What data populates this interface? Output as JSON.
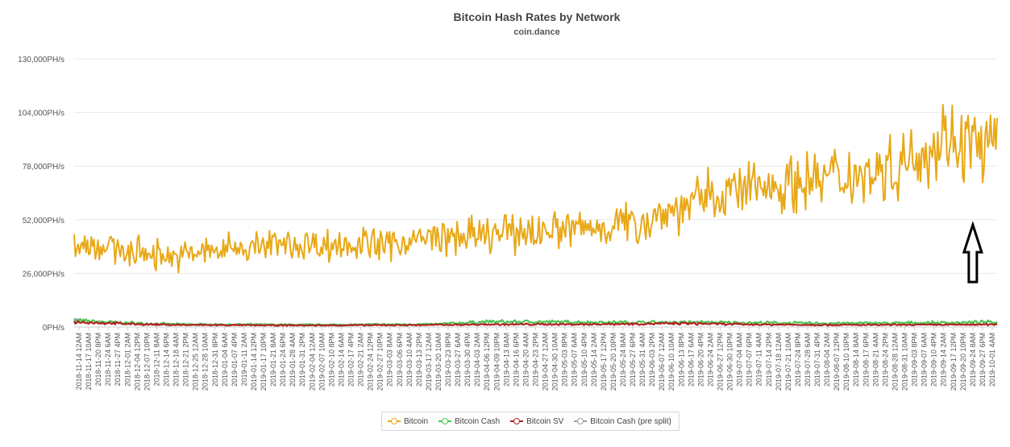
{
  "chart_data": {
    "type": "line",
    "title": "Bitcoin Hash Rates by Network",
    "subtitle": "coin.dance",
    "y_ticks": [
      "0PH/s",
      "26,000PH/s",
      "52,000PH/s",
      "78,000PH/s",
      "104,000PH/s",
      "130,000PH/s"
    ],
    "ylim": [
      0,
      130000
    ],
    "grid": true,
    "legend_position": "bottom-center",
    "x_labels": [
      "2018-11-14 12AM",
      "2018-11-17 10AM",
      "2018-11-20 8PM",
      "2018-11-24 6AM",
      "2018-11-27 4PM",
      "2018-12-01 2AM",
      "2018-12-04 12PM",
      "2018-12-07 10PM",
      "2018-12-11 8AM",
      "2018-12-14 6PM",
      "2018-12-18 4AM",
      "2018-12-21 2PM",
      "2018-12-25 12AM",
      "2018-12-28 10AM",
      "2018-12-31 8PM",
      "2019-01-04 6AM",
      "2019-01-07 4PM",
      "2019-01-11 2AM",
      "2019-01-14 12PM",
      "2019-01-17 10PM",
      "2019-01-21 8AM",
      "2019-01-24 6PM",
      "2019-01-28 4AM",
      "2019-01-31 2PM",
      "2019-02-04 12AM",
      "2019-02-07 10AM",
      "2019-02-10 8PM",
      "2019-02-14 6AM",
      "2019-02-17 4PM",
      "2019-02-21 2AM",
      "2019-02-24 12PM",
      "2019-02-27 10PM",
      "2019-03-03 8AM",
      "2019-03-06 6PM",
      "2019-03-10 4AM",
      "2019-03-13 2PM",
      "2019-03-17 12AM",
      "2019-03-20 10AM",
      "2019-03-23 8PM",
      "2019-03-27 6AM",
      "2019-03-30 4PM",
      "2019-04-03 2AM",
      "2019-04-06 12PM",
      "2019-04-09 10PM",
      "2019-04-13 8AM",
      "2019-04-16 6PM",
      "2019-04-20 4AM",
      "2019-04-23 2PM",
      "2019-04-27 12AM",
      "2019-04-30 10AM",
      "2019-05-03 8PM",
      "2019-05-07 6AM",
      "2019-05-10 4PM",
      "2019-05-14 2AM",
      "2019-05-17 12PM",
      "2019-05-20 10PM",
      "2019-05-24 8AM",
      "2019-05-27 6PM",
      "2019-05-31 4AM",
      "2019-06-03 2PM",
      "2019-06-07 12AM",
      "2019-06-10 10AM",
      "2019-06-13 8PM",
      "2019-06-17 6AM",
      "2019-06-20 4PM",
      "2019-06-24 2AM",
      "2019-06-27 12PM",
      "2019-06-30 10PM",
      "2019-07-04 8AM",
      "2019-07-07 6PM",
      "2019-07-11 4AM",
      "2019-07-14 2PM",
      "2019-07-18 12AM",
      "2019-07-21 10AM",
      "2019-07-24 8PM",
      "2019-07-28 6AM",
      "2019-07-31 4PM",
      "2019-08-04 2AM",
      "2019-08-07 12PM",
      "2019-08-10 10PM",
      "2019-08-14 8AM",
      "2019-08-17 6PM",
      "2019-08-21 4AM",
      "2019-08-24 2PM",
      "2019-08-28 12AM",
      "2019-08-31 10AM",
      "2019-09-03 8PM",
      "2019-09-07 6AM",
      "2019-09-10 4PM",
      "2019-09-14 2AM",
      "2019-09-17 12PM",
      "2019-09-20 10PM",
      "2019-09-24 8AM",
      "2019-09-27 6PM",
      "2019-10-01 4AM"
    ],
    "series": [
      {
        "name": "Bitcoin",
        "color": "#e8a817",
        "level_anchors": [
          42000,
          37000,
          34000,
          38000,
          40000,
          40000,
          40000,
          43000,
          44000,
          47000,
          48000,
          51000,
          60000,
          67000,
          70000,
          74000,
          78000,
          92000,
          86000
        ]
      },
      {
        "name": "Bitcoin Cash",
        "color": "#4cc552",
        "level_anchors": [
          3000,
          2000,
          1300,
          1200,
          1100,
          1100,
          1200,
          1300,
          2500,
          2500,
          2300,
          2200,
          2300,
          2100,
          1900,
          1800,
          1900,
          2100,
          2300
        ]
      },
      {
        "name": "Bitcoin SV",
        "color": "#b22222",
        "level_anchors": [
          2500,
          1500,
          1000,
          900,
          800,
          800,
          900,
          1000,
          1200,
          1300,
          1300,
          1600,
          1700,
          1300,
          1100,
          1000,
          1000,
          1100,
          1200
        ]
      },
      {
        "name": "Bitcoin Cash (pre split)",
        "color": "#9e9e9e",
        "level_anchors": [
          3500
        ]
      }
    ],
    "annotation": {
      "type": "up-arrow",
      "target_date": "2019-09-24 8AM",
      "target_value": 55000
    }
  }
}
